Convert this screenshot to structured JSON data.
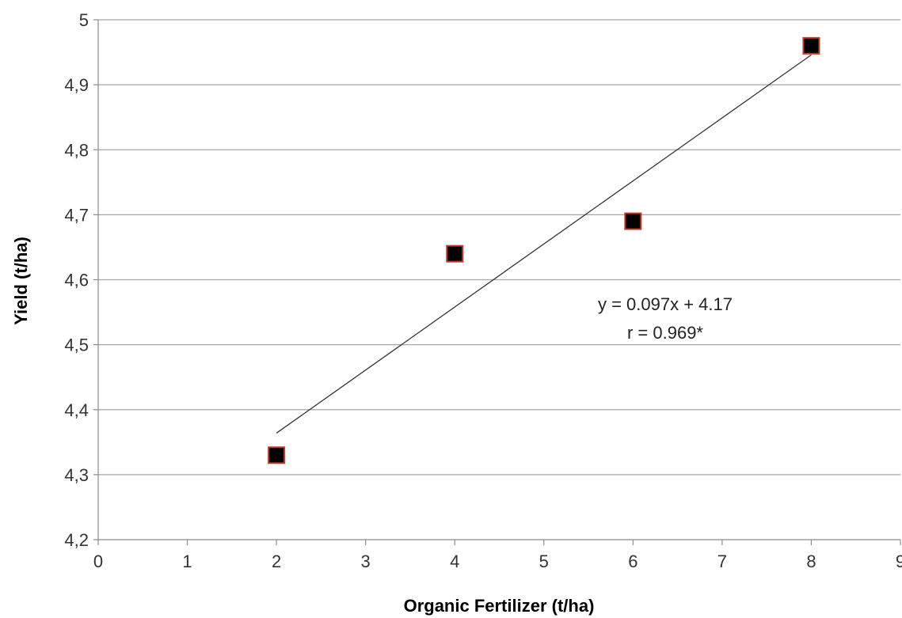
{
  "chart_data": {
    "type": "scatter",
    "xlabel": "Organic Fertilizer (t/ha)",
    "ylabel": "Yield (t/ha)",
    "xlim": [
      0,
      9
    ],
    "ylim": [
      4.2,
      5
    ],
    "x_ticks": [
      "0",
      "1",
      "2",
      "3",
      "4",
      "5",
      "6",
      "7",
      "8",
      "9"
    ],
    "y_ticks": [
      "4,2",
      "4,3",
      "4,4",
      "4,5",
      "4,6",
      "4,7",
      "4,8",
      "4,9",
      "5"
    ],
    "y_tick_values": [
      4.2,
      4.3,
      4.4,
      4.5,
      4.6,
      4.7,
      4.8,
      4.9,
      5.0
    ],
    "grid": "horizontal",
    "series": [
      {
        "x": [
          2,
          4,
          6,
          8
        ],
        "y": [
          4.33,
          4.64,
          4.69,
          4.96
        ]
      }
    ],
    "trendline": {
      "x": [
        2,
        8
      ],
      "slope": 0.097,
      "intercept": 4.17
    },
    "annotations": [
      "y = 0.097x + 4.17",
      "r = 0.969*"
    ],
    "colors": {
      "marker_fill": "#000000",
      "marker_edge": "#c0392b",
      "grid": "#a6a6a6",
      "trendline": "#333333"
    }
  }
}
